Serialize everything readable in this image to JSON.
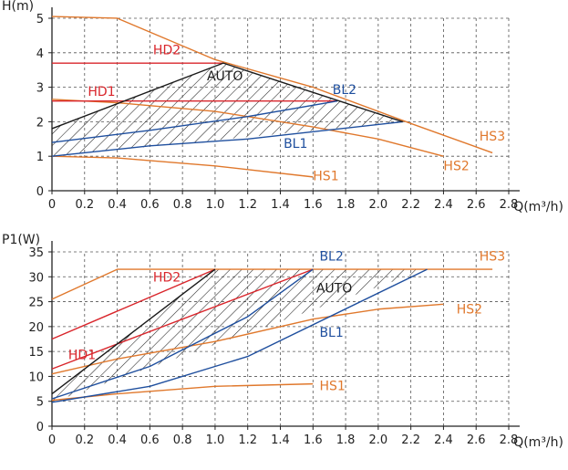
{
  "colors": {
    "hs": "#e0782c",
    "hd": "#d9252b",
    "bl": "#1f4f9e",
    "auto": "#1a1a1a",
    "grid": "#555555",
    "axis": "#222222"
  },
  "chart_data": [
    {
      "type": "line",
      "title": "",
      "ylabel": "H(m)",
      "xlabel": "Q(m³/h)",
      "xlim": [
        0,
        2.8
      ],
      "ylim": [
        0,
        5
      ],
      "grid": true,
      "x_ticks": [
        "0",
        "0.2",
        "0.4",
        "0.6",
        "0.8",
        "1.0",
        "1.2",
        "1.4",
        "1.6",
        "1.8",
        "2.0",
        "2.2",
        "2.4",
        "2.6",
        "2.8"
      ],
      "y_ticks": [
        "0",
        "1",
        "2",
        "3",
        "4",
        "5"
      ],
      "series": [
        {
          "name": "HS1",
          "color_role": "hs",
          "x": [
            0,
            0.4,
            1.0,
            1.6
          ],
          "y": [
            1.0,
            0.95,
            0.72,
            0.4
          ]
        },
        {
          "name": "HS2",
          "color_role": "hs",
          "x": [
            0,
            0.4,
            1.0,
            1.6,
            2.0,
            2.4
          ],
          "y": [
            2.65,
            2.55,
            2.3,
            1.85,
            1.5,
            1.0
          ]
        },
        {
          "name": "HS3",
          "color_role": "hs",
          "x": [
            0,
            0.4,
            1.0,
            1.6,
            2.2,
            2.7
          ],
          "y": [
            5.05,
            5.0,
            3.8,
            3.0,
            1.95,
            1.1
          ]
        },
        {
          "name": "HD1",
          "color_role": "hd",
          "x": [
            0,
            1.75
          ],
          "y": [
            2.6,
            2.6
          ]
        },
        {
          "name": "HD2",
          "color_role": "hd",
          "x": [
            0,
            1.05
          ],
          "y": [
            3.7,
            3.7
          ]
        },
        {
          "name": "BL1",
          "color_role": "bl",
          "x": [
            0,
            0.6,
            1.2,
            2.15
          ],
          "y": [
            1.0,
            1.3,
            1.5,
            2.0
          ]
        },
        {
          "name": "BL2",
          "color_role": "bl",
          "x": [
            0,
            0.6,
            1.2,
            1.75
          ],
          "y": [
            1.4,
            1.75,
            2.15,
            2.6
          ]
        },
        {
          "name": "AUTO",
          "color_role": "auto",
          "x": [
            0,
            1.05,
            2.15
          ],
          "y": [
            1.8,
            3.7,
            2.0
          ]
        }
      ],
      "hatched_region": {
        "x": [
          0,
          1.05,
          2.15,
          0
        ],
        "y": [
          1.8,
          3.7,
          2.0,
          1.0
        ]
      },
      "labels": [
        {
          "text": "HD2",
          "x": 0.62,
          "y": 3.95,
          "color_role": "hd"
        },
        {
          "text": "AUTO",
          "x": 0.95,
          "y": 3.2,
          "color_role": "auto"
        },
        {
          "text": "BL2",
          "x": 1.72,
          "y": 2.8,
          "color_role": "bl"
        },
        {
          "text": "HD1",
          "x": 0.22,
          "y": 2.75,
          "color_role": "hd"
        },
        {
          "text": "BL1",
          "x": 1.42,
          "y": 1.25,
          "color_role": "bl"
        },
        {
          "text": "HS3",
          "x": 2.62,
          "y": 1.45,
          "color_role": "hs"
        },
        {
          "text": "HS2",
          "x": 2.4,
          "y": 0.6,
          "color_role": "hs"
        },
        {
          "text": "HS1",
          "x": 1.6,
          "y": 0.3,
          "color_role": "hs"
        }
      ]
    },
    {
      "type": "line",
      "title": "",
      "ylabel": "P1(W)",
      "xlabel": "Q(m³/h)",
      "xlim": [
        0,
        2.8
      ],
      "ylim": [
        0,
        35
      ],
      "grid": true,
      "x_ticks": [
        "0",
        "0.2",
        "0.4",
        "0.6",
        "0.8",
        "1.0",
        "1.2",
        "1.4",
        "1.6",
        "1.8",
        "2.0",
        "2.2",
        "2.4",
        "2.6",
        "2.8"
      ],
      "y_ticks": [
        "0",
        "5",
        "10",
        "15",
        "20",
        "25",
        "30",
        "35"
      ],
      "series": [
        {
          "name": "HS1",
          "color_role": "hs",
          "x": [
            0,
            0.4,
            1.0,
            1.6
          ],
          "y": [
            5.2,
            6.5,
            8.0,
            8.5
          ]
        },
        {
          "name": "HS2",
          "color_role": "hs",
          "x": [
            0,
            0.4,
            1.0,
            1.6,
            2.0,
            2.4
          ],
          "y": [
            10.5,
            13.5,
            17.0,
            21.5,
            23.5,
            24.5
          ]
        },
        {
          "name": "HS3",
          "color_role": "hs",
          "x": [
            0,
            0.4,
            2.7
          ],
          "y": [
            25.5,
            31.5,
            31.5
          ]
        },
        {
          "name": "HD1",
          "color_role": "hd",
          "x": [
            0,
            1.6
          ],
          "y": [
            11.5,
            31.5
          ]
        },
        {
          "name": "HD2",
          "color_role": "hd",
          "x": [
            0,
            1.0
          ],
          "y": [
            17.5,
            31.5
          ]
        },
        {
          "name": "BL1",
          "color_role": "bl",
          "x": [
            0,
            0.6,
            1.2,
            2.3
          ],
          "y": [
            4.8,
            8.0,
            14.0,
            31.5
          ]
        },
        {
          "name": "BL2",
          "color_role": "bl",
          "x": [
            0,
            0.6,
            1.2,
            1.6
          ],
          "y": [
            5.5,
            12.0,
            22.0,
            31.5
          ]
        },
        {
          "name": "AUTO",
          "color_role": "auto",
          "x": [
            0,
            1.0
          ],
          "y": [
            6.5,
            31.5
          ]
        }
      ],
      "hatched_region": {
        "x": [
          0,
          1.0,
          2.3,
          0
        ],
        "y": [
          6.5,
          31.5,
          31.5,
          4.8
        ]
      },
      "labels": [
        {
          "text": "BL2",
          "x": 1.64,
          "y": 33.3,
          "color_role": "bl"
        },
        {
          "text": "HS3",
          "x": 2.62,
          "y": 33.3,
          "color_role": "hs"
        },
        {
          "text": "HD2",
          "x": 0.62,
          "y": 29.0,
          "color_role": "hd"
        },
        {
          "text": "AUTO",
          "x": 1.62,
          "y": 26.8,
          "color_role": "auto"
        },
        {
          "text": "HS2",
          "x": 2.48,
          "y": 22.6,
          "color_role": "hs"
        },
        {
          "text": "BL1",
          "x": 1.64,
          "y": 18.0,
          "color_role": "bl"
        },
        {
          "text": "HD1",
          "x": 0.1,
          "y": 13.5,
          "color_role": "hd"
        },
        {
          "text": "HS1",
          "x": 1.64,
          "y": 7.2,
          "color_role": "hs"
        }
      ]
    }
  ]
}
